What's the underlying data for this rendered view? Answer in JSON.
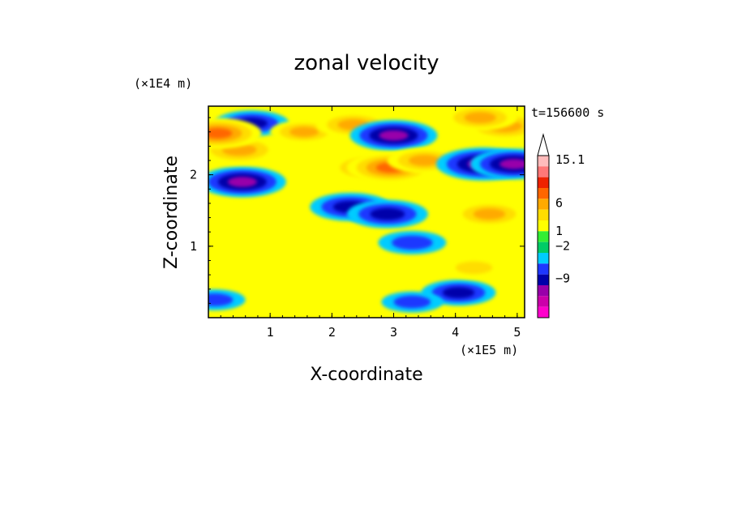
{
  "chart_data": {
    "type": "heatmap",
    "title": "zonal velocity",
    "xlabel": "X-coordinate",
    "ylabel": "Z-coordinate",
    "x_unit": "(×1E5 m)",
    "y_unit": "(×1E4 m)",
    "time_label": "t=156600 s",
    "xlim": [
      0,
      5.12
    ],
    "ylim": [
      0,
      2.96
    ],
    "x_ticks": [
      "1",
      "2",
      "3",
      "4",
      "5"
    ],
    "y_ticks": [
      "1",
      "2"
    ],
    "colorbar": {
      "labels": [
        "15.1",
        "6",
        "1",
        "−2",
        "−9"
      ],
      "label_levels": [
        15.1,
        6,
        1,
        -2,
        -9
      ],
      "level_colors": [
        {
          "level": "max",
          "color": "#ff00cc"
        },
        {
          "level": "-12",
          "color": "#cc00aa"
        },
        {
          "level": "-9",
          "color": "#9900aa"
        },
        {
          "level": "-6",
          "color": "#0000aa"
        },
        {
          "level": "-4",
          "color": "#1e37ff"
        },
        {
          "level": "-2",
          "color": "#00ccff"
        },
        {
          "level": "-1",
          "color": "#00cc66"
        },
        {
          "level": "0",
          "color": "#33ee33"
        },
        {
          "level": "0.5",
          "color": "#ffff00"
        },
        {
          "level": "1",
          "color": "#ffdd00"
        },
        {
          "level": "3",
          "color": "#ffaa00"
        },
        {
          "level": "6",
          "color": "#ff6600"
        },
        {
          "level": "9",
          "color": "#ee2200"
        },
        {
          "level": "12",
          "color": "#ff7777"
        },
        {
          "level": "15.1",
          "color": "#ffbbbb"
        }
      ]
    },
    "field_features": [
      {
        "x": 0.55,
        "z": 1.9,
        "u": -6
      },
      {
        "x": 0.5,
        "z": 2.35,
        "u": 5
      },
      {
        "x": 0.7,
        "z": 2.72,
        "u": -4
      },
      {
        "x": 0.15,
        "z": 2.58,
        "u": 6
      },
      {
        "x": 1.55,
        "z": 2.6,
        "u": 3
      },
      {
        "x": 2.35,
        "z": 2.7,
        "u": 4
      },
      {
        "x": 2.6,
        "z": 2.1,
        "u": 5
      },
      {
        "x": 3.0,
        "z": 2.55,
        "u": -6
      },
      {
        "x": 2.95,
        "z": 2.1,
        "u": 6
      },
      {
        "x": 3.5,
        "z": 2.2,
        "u": 4
      },
      {
        "x": 2.3,
        "z": 1.55,
        "u": -5
      },
      {
        "x": 2.9,
        "z": 1.45,
        "u": -5
      },
      {
        "x": 3.3,
        "z": 1.05,
        "u": -3
      },
      {
        "x": 4.45,
        "z": 2.15,
        "u": -7
      },
      {
        "x": 4.95,
        "z": 2.15,
        "u": -6
      },
      {
        "x": 4.8,
        "z": 2.68,
        "u": 5
      },
      {
        "x": 4.4,
        "z": 2.8,
        "u": 4
      },
      {
        "x": 4.55,
        "z": 1.45,
        "u": 4
      },
      {
        "x": 4.05,
        "z": 0.35,
        "u": -4
      },
      {
        "x": 3.3,
        "z": 0.22,
        "u": -2
      },
      {
        "x": 2.0,
        "z": 0.6,
        "u": 0
      },
      {
        "x": 1.5,
        "z": 1.2,
        "u": 0
      },
      {
        "x": 3.0,
        "z": 0.5,
        "u": 0
      },
      {
        "x": 0.1,
        "z": 0.25,
        "u": -2
      },
      {
        "x": 4.3,
        "z": 0.7,
        "u": 2
      }
    ]
  }
}
